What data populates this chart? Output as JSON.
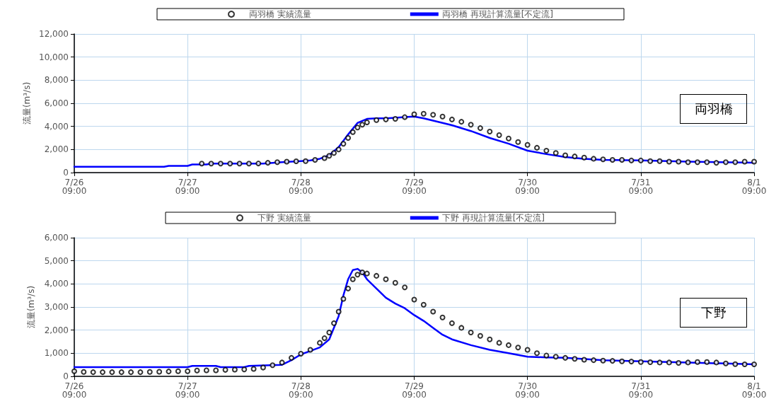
{
  "chart_data": [
    {
      "type": "line",
      "ylabel": "流量(m³/s)",
      "annotations": [
        "両羽橋"
      ],
      "legend": "top",
      "grid": true,
      "xlim": [
        "--07-26T09:00",
        "--08-01T09:00"
      ],
      "xticks": [
        {
          "value": "--07-26T09:00",
          "label": "7/26\n09:00"
        },
        {
          "value": "--07-27T09:00",
          "label": "7/27\n09:00"
        },
        {
          "value": "--07-28T09:00",
          "label": "7/28\n09:00"
        },
        {
          "value": "--07-29T09:00",
          "label": "7/29\n09:00"
        },
        {
          "value": "--07-30T09:00",
          "label": "7/30\n09:00"
        },
        {
          "value": "--07-31T09:00",
          "label": "7/31\n09:00"
        },
        {
          "value": "--08-01T09:00",
          "label": "8/1\n09:00"
        }
      ],
      "ylim": [
        0,
        12000
      ],
      "yticks": [
        0,
        {
          "value": 2000,
          "label": "2,000"
        },
        {
          "value": 4000,
          "label": "4,000"
        },
        {
          "value": 6000,
          "label": "6,000"
        },
        {
          "value": 8000,
          "label": "8,000"
        },
        {
          "value": 10000,
          "label": "10,000"
        },
        {
          "value": 12000,
          "label": "12,000"
        }
      ],
      "series": [
        {
          "name": "両羽橋 実績流量",
          "type": "scatter",
          "marker": "circle",
          "color": "#000000",
          "x": [
            "--07-27T12:00",
            "--07-27T14:00",
            "--07-27T16:00",
            "--07-27T18:00",
            "--07-27T20:00",
            "--07-27T22:00",
            "--07-28T00:00",
            "--07-28T02:00",
            "--07-28T04:00",
            "--07-28T06:00",
            "--07-28T08:00",
            "--07-28T10:00",
            "--07-28T12:00",
            "--07-28T14:00",
            "--07-28T15:00",
            "--07-28T16:00",
            "--07-28T17:00",
            "--07-28T18:00",
            "--07-28T19:00",
            "--07-28T20:00",
            "--07-28T21:00",
            "--07-28T22:00",
            "--07-28T23:00",
            "--07-29T01:00",
            "--07-29T03:00",
            "--07-29T05:00",
            "--07-29T07:00",
            "--07-29T09:00",
            "--07-29T11:00",
            "--07-29T13:00",
            "--07-29T15:00",
            "--07-29T17:00",
            "--07-29T19:00",
            "--07-29T21:00",
            "--07-29T23:00",
            "--07-30T01:00",
            "--07-30T03:00",
            "--07-30T05:00",
            "--07-30T07:00",
            "--07-30T09:00",
            "--07-30T11:00",
            "--07-30T13:00",
            "--07-30T15:00",
            "--07-30T17:00",
            "--07-30T19:00",
            "--07-30T21:00",
            "--07-30T23:00",
            "--07-31T01:00",
            "--07-31T03:00",
            "--07-31T05:00",
            "--07-31T07:00",
            "--07-31T09:00",
            "--07-31T11:00",
            "--07-31T13:00",
            "--07-31T15:00",
            "--07-31T17:00",
            "--07-31T19:00",
            "--07-31T21:00",
            "--07-31T23:00",
            "--08-01T01:00",
            "--08-01T03:00",
            "--08-01T05:00",
            "--08-01T07:00",
            "--08-01T09:00"
          ],
          "values": [
            780,
            780,
            780,
            780,
            780,
            780,
            790,
            850,
            900,
            950,
            980,
            1000,
            1100,
            1250,
            1450,
            1700,
            2000,
            2500,
            3000,
            3500,
            3900,
            4150,
            4350,
            4550,
            4600,
            4650,
            4800,
            5050,
            5100,
            5000,
            4850,
            4600,
            4400,
            4150,
            3850,
            3550,
            3250,
            2950,
            2650,
            2400,
            2150,
            1900,
            1700,
            1500,
            1400,
            1300,
            1200,
            1150,
            1100,
            1100,
            1050,
            1050,
            1000,
            1000,
            950,
            950,
            900,
            900,
            900,
            850,
            900,
            900,
            950,
            950
          ]
        },
        {
          "name": "両羽橋 再現計算流量[不定流]",
          "line_style": "solid",
          "marker": "none",
          "color": "#0000ff",
          "x": [
            "--07-26T09:00",
            "--07-27T04:00",
            "--07-27T05:00",
            "--07-27T09:00",
            "--07-27T10:00",
            "--07-27T13:00",
            "--07-27T14:00",
            "--07-28T01:00",
            "--07-28T05:00",
            "--07-28T09:00",
            "--07-28T11:00",
            "--07-28T13:00",
            "--07-28T15:00",
            "--07-28T17:00",
            "--07-28T19:00",
            "--07-28T21:00",
            "--07-28T23:00",
            "--07-29T01:00",
            "--07-29T03:00",
            "--07-29T05:00",
            "--07-29T07:00",
            "--07-29T09:00",
            "--07-29T11:00",
            "--07-29T13:00",
            "--07-29T15:00",
            "--07-29T17:00",
            "--07-29T21:00",
            "--07-30T01:00",
            "--07-30T05:00",
            "--07-30T09:00",
            "--07-30T13:00",
            "--07-30T17:00",
            "--07-30T21:00",
            "--07-31T01:00",
            "--07-31T09:00",
            "--07-31T19:00",
            "--08-01T09:00"
          ],
          "values": [
            500,
            500,
            580,
            580,
            700,
            700,
            780,
            780,
            900,
            1000,
            1050,
            1200,
            1500,
            2200,
            3300,
            4300,
            4650,
            4700,
            4700,
            4750,
            4800,
            4850,
            4700,
            4500,
            4300,
            4100,
            3600,
            3000,
            2500,
            1900,
            1600,
            1350,
            1200,
            1100,
            1050,
            950,
            850
          ]
        }
      ]
    },
    {
      "type": "line",
      "ylabel": "流量(m³/s)",
      "annotations": [
        "下野"
      ],
      "legend": "top",
      "grid": true,
      "xlim": [
        "--07-26T09:00",
        "--08-01T09:00"
      ],
      "xticks": [
        {
          "value": "--07-26T09:00",
          "label": "7/26\n09:00"
        },
        {
          "value": "--07-27T09:00",
          "label": "7/27\n09:00"
        },
        {
          "value": "--07-28T09:00",
          "label": "7/28\n09:00"
        },
        {
          "value": "--07-29T09:00",
          "label": "7/29\n09:00"
        },
        {
          "value": "--07-30T09:00",
          "label": "7/30\n09:00"
        },
        {
          "value": "--07-31T09:00",
          "label": "7/31\n09:00"
        },
        {
          "value": "--08-01T09:00",
          "label": "8/1\n09:00"
        }
      ],
      "ylim": [
        0,
        6000
      ],
      "yticks": [
        0,
        {
          "value": 1000,
          "label": "1,000"
        },
        {
          "value": 2000,
          "label": "2,000"
        },
        {
          "value": 3000,
          "label": "3,000"
        },
        {
          "value": 4000,
          "label": "4,000"
        },
        {
          "value": 5000,
          "label": "5,000"
        },
        {
          "value": 6000,
          "label": "6,000"
        }
      ],
      "series": [
        {
          "name": "下野 実績流量",
          "type": "scatter",
          "marker": "circle",
          "color": "#000000",
          "x": [
            "--07-26T09:00",
            "--07-26T11:00",
            "--07-26T13:00",
            "--07-26T15:00",
            "--07-26T17:00",
            "--07-26T19:00",
            "--07-26T21:00",
            "--07-26T23:00",
            "--07-27T01:00",
            "--07-27T03:00",
            "--07-27T05:00",
            "--07-27T07:00",
            "--07-27T09:00",
            "--07-27T11:00",
            "--07-27T13:00",
            "--07-27T15:00",
            "--07-27T17:00",
            "--07-27T19:00",
            "--07-27T21:00",
            "--07-27T23:00",
            "--07-28T01:00",
            "--07-28T03:00",
            "--07-28T05:00",
            "--07-28T07:00",
            "--07-28T09:00",
            "--07-28T11:00",
            "--07-28T13:00",
            "--07-28T14:00",
            "--07-28T15:00",
            "--07-28T16:00",
            "--07-28T17:00",
            "--07-28T18:00",
            "--07-28T19:00",
            "--07-28T20:00",
            "--07-28T21:00",
            "--07-28T22:00",
            "--07-28T23:00",
            "--07-29T01:00",
            "--07-29T03:00",
            "--07-29T05:00",
            "--07-29T07:00",
            "--07-29T09:00",
            "--07-29T11:00",
            "--07-29T13:00",
            "--07-29T15:00",
            "--07-29T17:00",
            "--07-29T19:00",
            "--07-29T21:00",
            "--07-29T23:00",
            "--07-30T01:00",
            "--07-30T03:00",
            "--07-30T05:00",
            "--07-30T07:00",
            "--07-30T09:00",
            "--07-30T11:00",
            "--07-30T13:00",
            "--07-30T15:00",
            "--07-30T17:00",
            "--07-30T19:00",
            "--07-30T21:00",
            "--07-30T23:00",
            "--07-31T01:00",
            "--07-31T03:00",
            "--07-31T05:00",
            "--07-31T07:00",
            "--07-31T09:00",
            "--07-31T11:00",
            "--07-31T13:00",
            "--07-31T15:00",
            "--07-31T17:00",
            "--07-31T19:00",
            "--07-31T21:00",
            "--07-31T23:00",
            "--08-01T01:00",
            "--08-01T03:00",
            "--08-01T05:00",
            "--08-01T07:00",
            "--08-01T09:00"
          ],
          "values": [
            220,
            190,
            180,
            180,
            180,
            180,
            180,
            180,
            190,
            200,
            210,
            220,
            220,
            250,
            260,
            260,
            280,
            290,
            300,
            320,
            380,
            480,
            600,
            800,
            980,
            1150,
            1450,
            1650,
            1900,
            2300,
            2800,
            3350,
            3800,
            4200,
            4400,
            4500,
            4450,
            4350,
            4200,
            4050,
            3850,
            3320,
            3100,
            2800,
            2550,
            2300,
            2100,
            1900,
            1750,
            1600,
            1450,
            1350,
            1250,
            1150,
            1000,
            900,
            850,
            800,
            760,
            720,
            700,
            680,
            670,
            650,
            640,
            620,
            610,
            600,
            600,
            580,
            600,
            620,
            620,
            600,
            560,
            530,
            520,
            520
          ]
        },
        {
          "name": "下野 再現計算流量[不定流]",
          "line_style": "solid",
          "marker": "none",
          "color": "#0000ff",
          "x": [
            "--07-26T09:00",
            "--07-27T09:00",
            "--07-27T10:00",
            "--07-27T15:00",
            "--07-27T16:00",
            "--07-27T21:00",
            "--07-27T22:00",
            "--07-28T05:00",
            "--07-28T07:00",
            "--07-28T09:00",
            "--07-28T11:00",
            "--07-28T13:00",
            "--07-28T15:00",
            "--07-28T17:00",
            "--07-28T18:00",
            "--07-28T19:00",
            "--07-28T20:00",
            "--07-28T21:00",
            "--07-28T22:00",
            "--07-28T23:00",
            "--07-29T01:00",
            "--07-29T03:00",
            "--07-29T05:00",
            "--07-29T07:00",
            "--07-29T09:00",
            "--07-29T11:00",
            "--07-29T13:00",
            "--07-29T15:00",
            "--07-29T17:00",
            "--07-29T21:00",
            "--07-30T01:00",
            "--07-30T05:00",
            "--07-30T09:00",
            "--07-30T13:00",
            "--07-30T17:00",
            "--07-30T21:00",
            "--07-31T01:00",
            "--07-31T09:00",
            "--07-31T19:00",
            "--08-01T09:00"
          ],
          "values": [
            400,
            400,
            450,
            450,
            400,
            400,
            450,
            500,
            700,
            950,
            1100,
            1250,
            1600,
            2600,
            3500,
            4200,
            4600,
            4650,
            4500,
            4200,
            3800,
            3400,
            3150,
            2950,
            2650,
            2400,
            2100,
            1800,
            1600,
            1350,
            1150,
            1000,
            850,
            820,
            800,
            750,
            700,
            650,
            600,
            520
          ]
        }
      ]
    }
  ]
}
